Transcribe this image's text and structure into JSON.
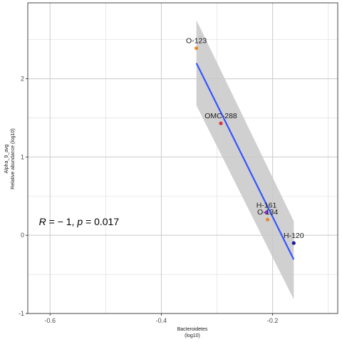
{
  "chart_data": {
    "type": "scatter",
    "title": "",
    "xlabel": [
      "Bacteroidetes",
      "(log10)"
    ],
    "ylabel": [
      "Alpha_9_avg",
      "Relative abundance (log10)"
    ],
    "xlim": [
      -0.64,
      -0.083
    ],
    "ylim": [
      -1,
      2.97
    ],
    "x_ticks": [
      -0.6,
      -0.4,
      -0.2
    ],
    "x_tick_labels": [
      "-0.6",
      "-0.4",
      "-0.2"
    ],
    "y_ticks": [
      -1,
      0,
      1,
      2
    ],
    "y_tick_labels": [
      "-1",
      "0",
      "1",
      "2"
    ],
    "grid": true,
    "background": "white",
    "points": [
      {
        "label": "O-123",
        "x": -0.337,
        "y": 2.39,
        "color": "#e8892f"
      },
      {
        "label": "OMC-288",
        "x": -0.293,
        "y": 1.43,
        "color": "#d63a3a"
      },
      {
        "label": "H-161",
        "x": -0.211,
        "y": 0.29,
        "color": "#8a2be2"
      },
      {
        "label": "O-134",
        "x": -0.209,
        "y": 0.2,
        "color": "#e8892f"
      },
      {
        "label": "H-120",
        "x": -0.162,
        "y": -0.1,
        "color": "#1a1aa6"
      }
    ],
    "regression": {
      "x": [
        -0.337,
        -0.162
      ],
      "y": [
        2.2,
        -0.31
      ],
      "color": "#3355ff",
      "ci_upper": [
        2.75,
        0.18
      ],
      "ci_lower": [
        1.66,
        -0.82
      ],
      "ci_color": "#c8c8c8"
    },
    "annotation": {
      "r_symbol": "R",
      "r_value": " = − 1, ",
      "p_symbol": "p",
      "p_value": " = 0.017",
      "x": -0.62,
      "y": 0.13
    }
  }
}
